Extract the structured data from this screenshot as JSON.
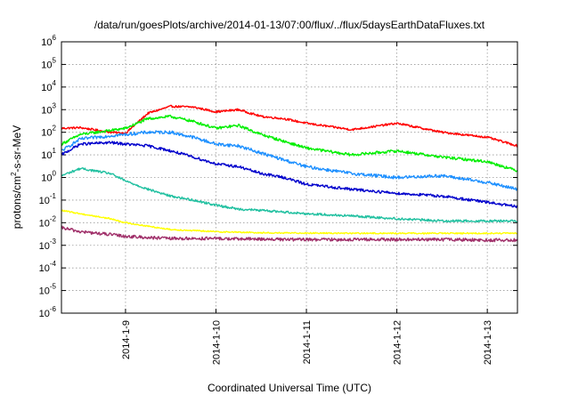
{
  "chart_data": {
    "type": "line",
    "title": "/data/run/goesPlots/archive/2014-01-13/07:00/flux/../flux/5daysEarthDataFluxes.txt",
    "xlabel": "Coordinated Universal Time (UTC)",
    "ylabel_parts": {
      "prefix": "protons/cm",
      "sup": "2",
      "suffix": "-s-sr-MeV"
    },
    "yscale": "log",
    "ylim_exponents": [
      -6,
      6
    ],
    "y_ticks": [
      {
        "base": "10",
        "exp": "6"
      },
      {
        "base": "10",
        "exp": "5"
      },
      {
        "base": "10",
        "exp": "4"
      },
      {
        "base": "10",
        "exp": "3"
      },
      {
        "base": "10",
        "exp": "2"
      },
      {
        "base": "10",
        "exp": "1"
      },
      {
        "base": "10",
        "exp": "0"
      },
      {
        "base": "10",
        "exp": "-1"
      },
      {
        "base": "10",
        "exp": "-2"
      },
      {
        "base": "10",
        "exp": "-3"
      },
      {
        "base": "10",
        "exp": "-4"
      },
      {
        "base": "10",
        "exp": "-5"
      },
      {
        "base": "10",
        "exp": "-6"
      }
    ],
    "xlim": [
      "2014-01-08 07:00",
      "2014-01-13 08:00"
    ],
    "x_ticks": [
      "2014-1-9",
      "2014-1-10",
      "2014-1-11",
      "2014-1-12",
      "2014-1-13"
    ],
    "grid": true,
    "series": [
      {
        "color": "#ff0000",
        "x": [
          "2014-01-08 07:00",
          "2014-01-08 12:00",
          "2014-01-08 20:00",
          "2014-01-09 00:00",
          "2014-01-09 06:00",
          "2014-01-09 12:00",
          "2014-01-09 18:00",
          "2014-01-10 00:00",
          "2014-01-10 06:00",
          "2014-01-10 12:00",
          "2014-01-10 18:00",
          "2014-01-11 00:00",
          "2014-01-11 12:00",
          "2014-01-12 00:00",
          "2014-01-12 12:00",
          "2014-01-13 00:00",
          "2014-01-13 08:00"
        ],
        "y": [
          150,
          160,
          100,
          90,
          700,
          1400,
          1300,
          800,
          1000,
          500,
          400,
          250,
          130,
          250,
          100,
          60,
          25
        ]
      },
      {
        "color": "#00ee00",
        "x": [
          "2014-01-08 07:00",
          "2014-01-08 12:00",
          "2014-01-08 20:00",
          "2014-01-09 00:00",
          "2014-01-09 06:00",
          "2014-01-09 12:00",
          "2014-01-09 18:00",
          "2014-01-10 00:00",
          "2014-01-10 06:00",
          "2014-01-10 12:00",
          "2014-01-10 18:00",
          "2014-01-11 00:00",
          "2014-01-11 12:00",
          "2014-01-12 00:00",
          "2014-01-12 12:00",
          "2014-01-13 00:00",
          "2014-01-13 08:00"
        ],
        "y": [
          30,
          80,
          120,
          150,
          400,
          500,
          300,
          150,
          200,
          80,
          40,
          20,
          10,
          15,
          8,
          5,
          2
        ]
      },
      {
        "color": "#1e90ff",
        "x": [
          "2014-01-08 07:00",
          "2014-01-08 12:00",
          "2014-01-08 20:00",
          "2014-01-09 00:00",
          "2014-01-09 06:00",
          "2014-01-09 12:00",
          "2014-01-09 18:00",
          "2014-01-10 00:00",
          "2014-01-10 06:00",
          "2014-01-10 12:00",
          "2014-01-10 18:00",
          "2014-01-11 00:00",
          "2014-01-11 12:00",
          "2014-01-12 00:00",
          "2014-01-12 12:00",
          "2014-01-13 00:00",
          "2014-01-13 08:00"
        ],
        "y": [
          15,
          50,
          70,
          80,
          100,
          100,
          60,
          30,
          25,
          12,
          6,
          3,
          1.5,
          1.0,
          1.2,
          0.6,
          0.3
        ]
      },
      {
        "color": "#0000cc",
        "x": [
          "2014-01-08 07:00",
          "2014-01-08 12:00",
          "2014-01-08 20:00",
          "2014-01-09 00:00",
          "2014-01-09 06:00",
          "2014-01-09 12:00",
          "2014-01-09 18:00",
          "2014-01-10 00:00",
          "2014-01-10 06:00",
          "2014-01-10 12:00",
          "2014-01-10 18:00",
          "2014-01-11 00:00",
          "2014-01-11 12:00",
          "2014-01-12 00:00",
          "2014-01-12 12:00",
          "2014-01-13 00:00",
          "2014-01-13 08:00"
        ],
        "y": [
          10,
          30,
          35,
          30,
          25,
          15,
          8,
          4,
          3,
          1.5,
          1.0,
          0.5,
          0.3,
          0.2,
          0.15,
          0.08,
          0.05
        ]
      },
      {
        "color": "#20c0a0",
        "x": [
          "2014-01-08 07:00",
          "2014-01-08 12:00",
          "2014-01-08 20:00",
          "2014-01-09 00:00",
          "2014-01-09 06:00",
          "2014-01-09 12:00",
          "2014-01-09 18:00",
          "2014-01-10 00:00",
          "2014-01-10 06:00",
          "2014-01-10 12:00",
          "2014-01-10 18:00",
          "2014-01-11 00:00",
          "2014-01-11 12:00",
          "2014-01-12 00:00",
          "2014-01-12 12:00",
          "2014-01-13 00:00",
          "2014-01-13 08:00"
        ],
        "y": [
          1.2,
          2.5,
          1.5,
          0.7,
          0.3,
          0.15,
          0.1,
          0.06,
          0.04,
          0.035,
          0.03,
          0.025,
          0.02,
          0.015,
          0.012,
          0.012,
          0.012
        ]
      },
      {
        "color": "#ffff00",
        "x": [
          "2014-01-08 07:00",
          "2014-01-08 12:00",
          "2014-01-08 20:00",
          "2014-01-09 00:00",
          "2014-01-09 06:00",
          "2014-01-09 12:00",
          "2014-01-09 18:00",
          "2014-01-10 00:00",
          "2014-01-10 06:00",
          "2014-01-10 12:00",
          "2014-01-10 18:00",
          "2014-01-11 00:00",
          "2014-01-11 12:00",
          "2014-01-12 00:00",
          "2014-01-12 12:00",
          "2014-01-13 00:00",
          "2014-01-13 08:00"
        ],
        "y": [
          0.035,
          0.025,
          0.015,
          0.01,
          0.007,
          0.005,
          0.0045,
          0.004,
          0.0038,
          0.0036,
          0.0035,
          0.0035,
          0.0034,
          0.0034,
          0.0034,
          0.0034,
          0.0034
        ]
      },
      {
        "color": "#a0306a",
        "x": [
          "2014-01-08 07:00",
          "2014-01-08 12:00",
          "2014-01-08 20:00",
          "2014-01-09 00:00",
          "2014-01-09 06:00",
          "2014-01-09 12:00",
          "2014-01-09 18:00",
          "2014-01-10 00:00",
          "2014-01-10 06:00",
          "2014-01-10 12:00",
          "2014-01-10 18:00",
          "2014-01-11 00:00",
          "2014-01-11 12:00",
          "2014-01-12 00:00",
          "2014-01-12 12:00",
          "2014-01-13 00:00",
          "2014-01-13 08:00"
        ],
        "y": [
          0.006,
          0.004,
          0.003,
          0.0025,
          0.0022,
          0.002,
          0.002,
          0.002,
          0.0019,
          0.0019,
          0.0018,
          0.0018,
          0.0018,
          0.0018,
          0.0018,
          0.0017,
          0.0017
        ]
      }
    ]
  }
}
